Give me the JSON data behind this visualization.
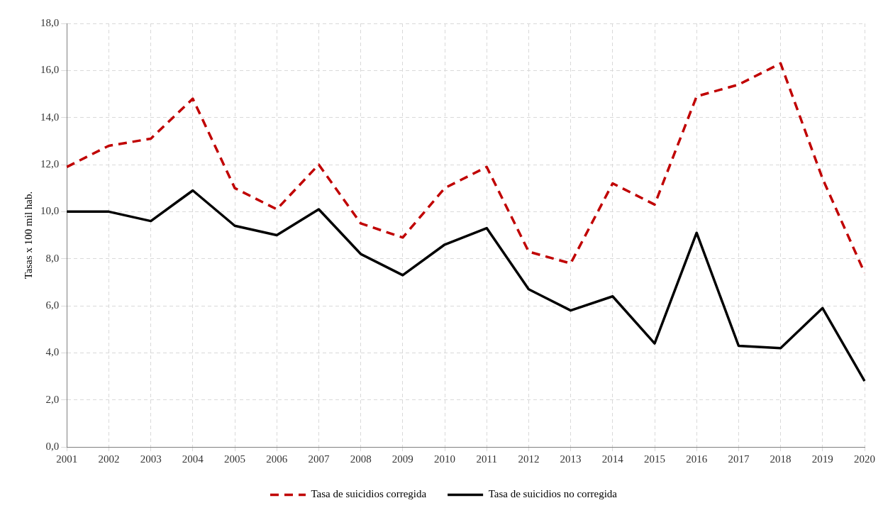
{
  "chart_data": {
    "type": "line",
    "ylabel": "Tasas x 100 mil hab.",
    "categories": [
      "2001",
      "2002",
      "2003",
      "2004",
      "2005",
      "2006",
      "2007",
      "2008",
      "2009",
      "2010",
      "2011",
      "2012",
      "2013",
      "2014",
      "2015",
      "2016",
      "2017",
      "2018",
      "2019",
      "2020"
    ],
    "series": [
      {
        "name": "Tasa de suicidios corregida",
        "color": "#c00000",
        "line_style": "dashed",
        "values": [
          11.9,
          12.8,
          13.1,
          14.8,
          11.0,
          10.1,
          12.0,
          9.5,
          8.9,
          11.0,
          11.9,
          8.3,
          7.8,
          11.2,
          10.3,
          14.9,
          15.4,
          16.3,
          11.4,
          7.4
        ]
      },
      {
        "name": "Tasa de suicidios no corregida",
        "color": "#000000",
        "line_style": "solid",
        "values": [
          10.0,
          10.0,
          9.6,
          10.9,
          9.4,
          9.0,
          10.1,
          8.2,
          7.3,
          8.6,
          9.3,
          6.7,
          5.8,
          6.4,
          4.4,
          9.1,
          4.3,
          4.2,
          5.9,
          2.8
        ]
      }
    ],
    "ylim": [
      0,
      18
    ],
    "yticks": [
      {
        "value": 0,
        "label": "0,0"
      },
      {
        "value": 2,
        "label": "2,0"
      },
      {
        "value": 4,
        "label": "4,0"
      },
      {
        "value": 6,
        "label": "6,0"
      },
      {
        "value": 8,
        "label": "8,0"
      },
      {
        "value": 10,
        "label": "10,0"
      },
      {
        "value": 12,
        "label": "12,0"
      },
      {
        "value": 14,
        "label": "14,0"
      },
      {
        "value": 16,
        "label": "16,0"
      },
      {
        "value": 18,
        "label": "18,0"
      }
    ],
    "grid": true,
    "legend": "bottom",
    "marker": "none"
  }
}
